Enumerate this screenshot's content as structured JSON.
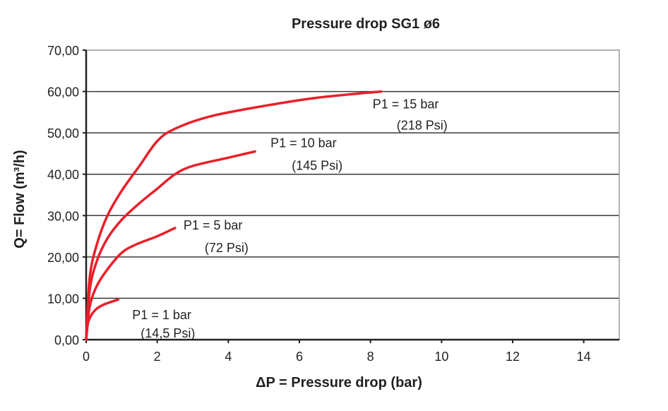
{
  "chart_data": {
    "type": "line",
    "title": "Pressure drop SG1 ø6",
    "xlabel": "ΔP = Pressure drop (bar)",
    "ylabel": "Q= Flow (m³/h)",
    "xlim": [
      0,
      15
    ],
    "ylim": [
      0,
      70
    ],
    "x_ticks": [
      0,
      2,
      4,
      6,
      8,
      10,
      12,
      14
    ],
    "x_tick_labels": [
      "0",
      "2",
      "4",
      "6",
      "8",
      "10",
      "12",
      "14"
    ],
    "y_ticks": [
      0,
      10,
      20,
      30,
      40,
      50,
      60,
      70
    ],
    "y_tick_labels": [
      "0,00",
      "10,00",
      "20,00",
      "30,00",
      "40,00",
      "50,00",
      "60,00",
      "70,00"
    ],
    "grid": "horizontal",
    "line_color": "#e8202a",
    "series": [
      {
        "name": "P1 = 1 bar",
        "label_line1": "P1 = 1 bar",
        "label_line2": "(14,5 Psi)",
        "x": [
          0,
          0.05,
          0.15,
          0.3,
          0.5,
          0.9
        ],
        "y": [
          0,
          4,
          6,
          7.5,
          8.5,
          9.7
        ]
      },
      {
        "name": "P1 = 5 bar",
        "label_line1": "P1 = 5 bar",
        "label_line2": "(72 Psi)",
        "x": [
          0,
          0.1,
          0.3,
          0.6,
          1.0,
          1.4,
          2.0,
          2.5
        ],
        "y": [
          0,
          8,
          13,
          17,
          21,
          23,
          25,
          27
        ]
      },
      {
        "name": "P1 = 10 bar",
        "label_line1": "P1 = 10 bar",
        "label_line2": "(145 Psi)",
        "x": [
          0,
          0.1,
          0.3,
          0.6,
          1.0,
          1.5,
          2.0,
          2.5,
          3.0,
          4.0,
          4.75
        ],
        "y": [
          0,
          12,
          19,
          24.5,
          29,
          33,
          36.5,
          40,
          42,
          44,
          45.5
        ]
      },
      {
        "name": "P1 = 15 bar",
        "label_line1": "P1 = 15 bar",
        "label_line2": "(218 Psi)",
        "x": [
          0,
          0.1,
          0.3,
          0.6,
          1.0,
          1.5,
          2.0,
          2.5,
          3.5,
          5.0,
          6.5,
          8.3
        ],
        "y": [
          0,
          15,
          23,
          30,
          36,
          42,
          48,
          51,
          54,
          56.5,
          58.5,
          60
        ]
      }
    ]
  }
}
